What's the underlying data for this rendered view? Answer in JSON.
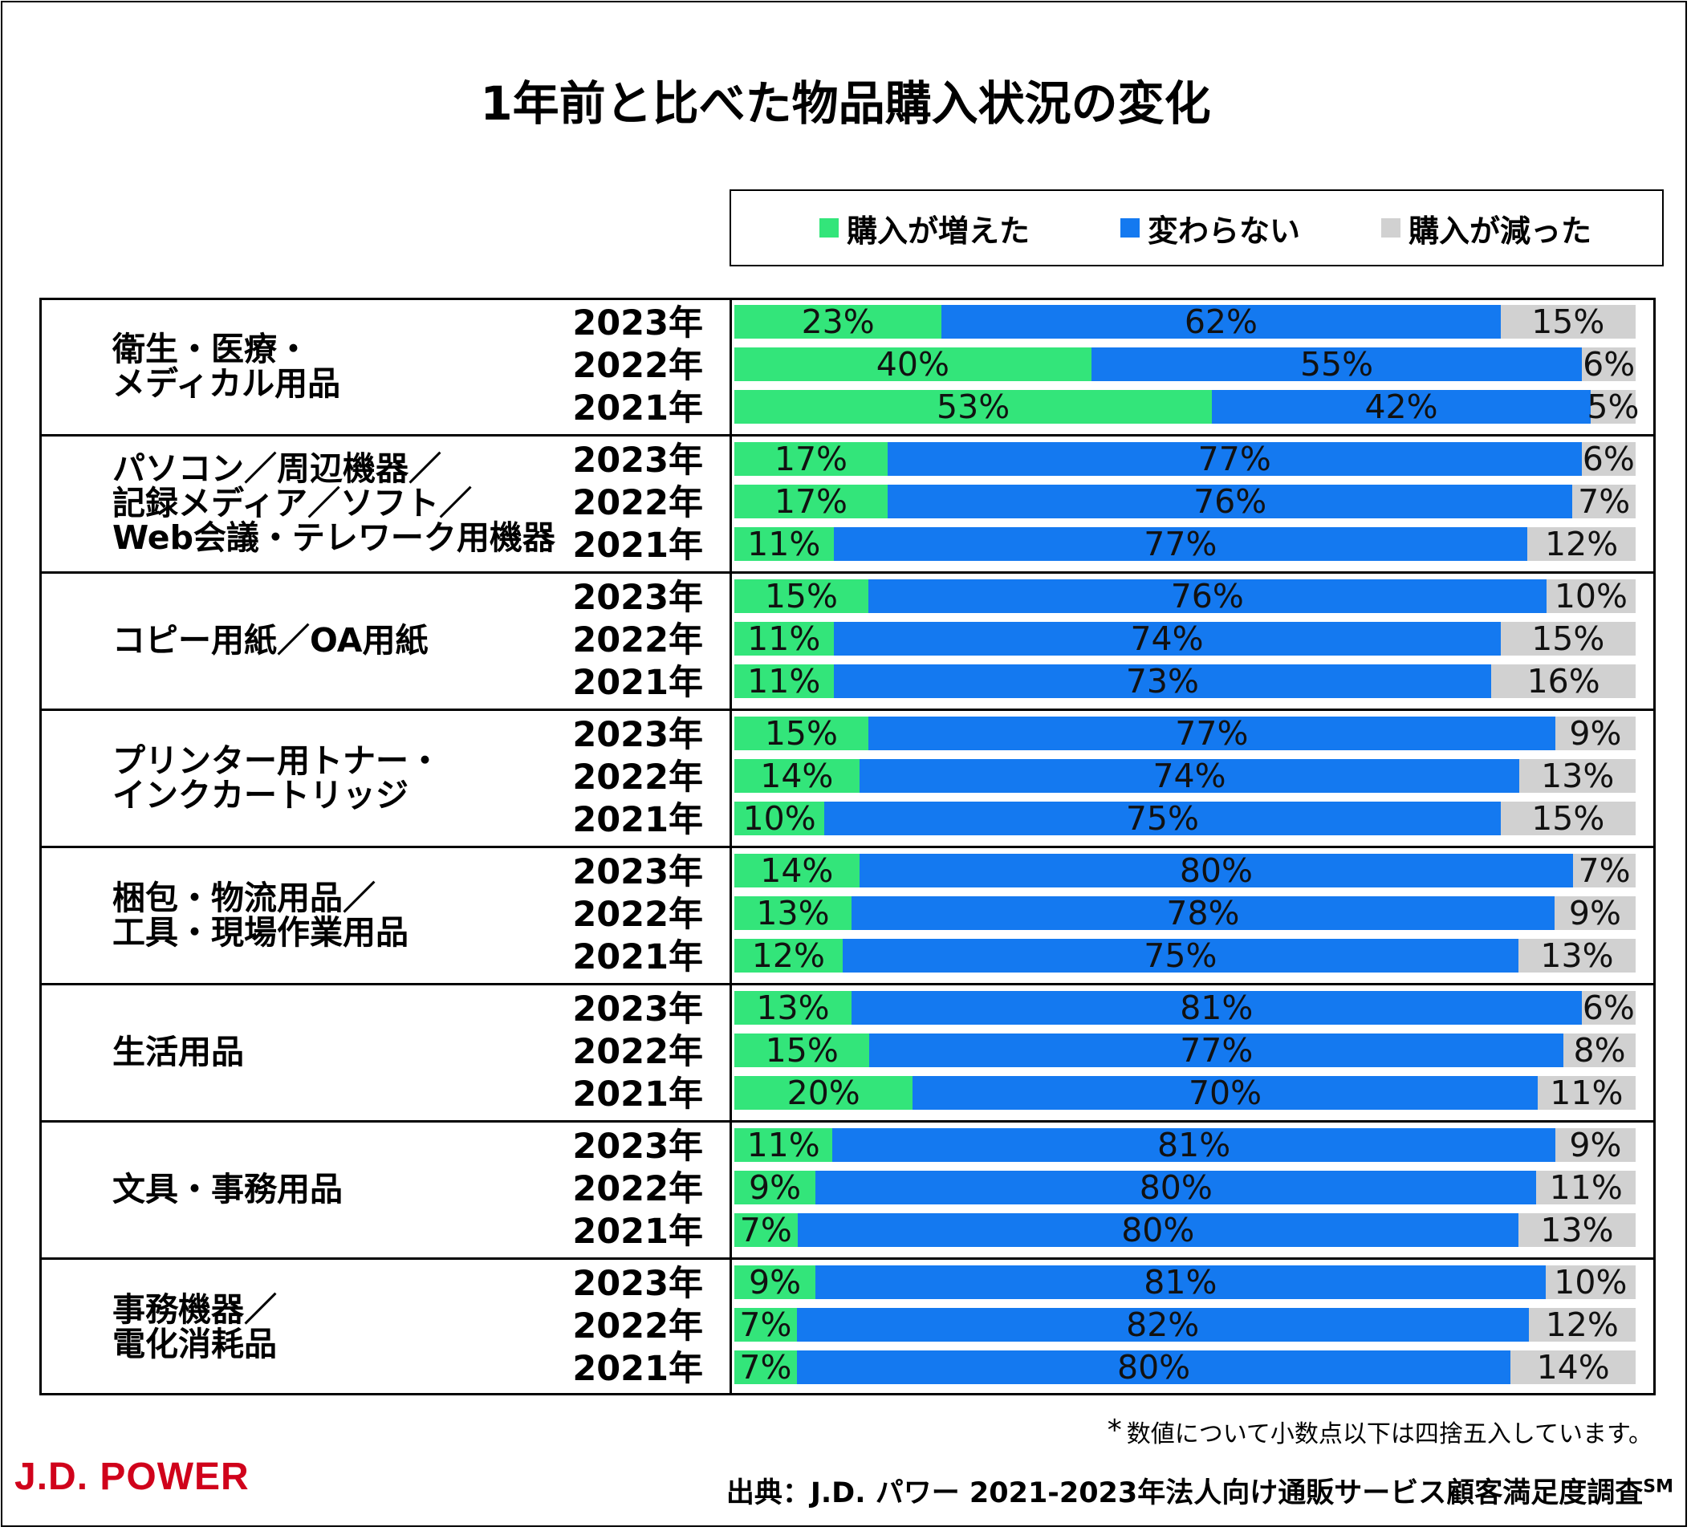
{
  "title": "1年前と比べた物品購入状況の変化",
  "colors": {
    "increased": "#33e57a",
    "unchanged": "#1479f0",
    "decreased": "#d1d1d1"
  },
  "legend": {
    "increased": "購入が増えた",
    "unchanged": "変わらない",
    "decreased": "購入が減った"
  },
  "chart_data": {
    "type": "bar",
    "orientation": "horizontal",
    "stacked": true,
    "unit": "%",
    "title": "1年前と比べた物品購入状況の変化",
    "series_names": [
      "購入が増えた",
      "変わらない",
      "購入が減った"
    ],
    "groups": [
      {
        "label": "衛生・医療・\nメディカル用品",
        "rows": [
          {
            "year": "2023年",
            "values": [
              23,
              62,
              15
            ]
          },
          {
            "year": "2022年",
            "values": [
              40,
              55,
              6
            ]
          },
          {
            "year": "2021年",
            "values": [
              53,
              42,
              5
            ]
          }
        ]
      },
      {
        "label": "パソコン／周辺機器／\n記録メディア／ソフト／\nWeb会議・テレワーク用機器",
        "rows": [
          {
            "year": "2023年",
            "values": [
              17,
              77,
              6
            ]
          },
          {
            "year": "2022年",
            "values": [
              17,
              76,
              7
            ]
          },
          {
            "year": "2021年",
            "values": [
              11,
              77,
              12
            ]
          }
        ]
      },
      {
        "label": "コピー用紙／OA用紙",
        "rows": [
          {
            "year": "2023年",
            "values": [
              15,
              76,
              10
            ]
          },
          {
            "year": "2022年",
            "values": [
              11,
              74,
              15
            ]
          },
          {
            "year": "2021年",
            "values": [
              11,
              73,
              16
            ]
          }
        ]
      },
      {
        "label": "プリンター用トナー・\nインクカートリッジ",
        "rows": [
          {
            "year": "2023年",
            "values": [
              15,
              77,
              9
            ]
          },
          {
            "year": "2022年",
            "values": [
              14,
              74,
              13
            ]
          },
          {
            "year": "2021年",
            "values": [
              10,
              75,
              15
            ]
          }
        ]
      },
      {
        "label": "梱包・物流用品／\n工具・現場作業用品",
        "rows": [
          {
            "year": "2023年",
            "values": [
              14,
              80,
              7
            ]
          },
          {
            "year": "2022年",
            "values": [
              13,
              78,
              9
            ]
          },
          {
            "year": "2021年",
            "values": [
              12,
              75,
              13
            ]
          }
        ]
      },
      {
        "label": "生活用品",
        "rows": [
          {
            "year": "2023年",
            "values": [
              13,
              81,
              6
            ]
          },
          {
            "year": "2022年",
            "values": [
              15,
              77,
              8
            ]
          },
          {
            "year": "2021年",
            "values": [
              20,
              70,
              11
            ]
          }
        ]
      },
      {
        "label": "文具・事務用品",
        "rows": [
          {
            "year": "2023年",
            "values": [
              11,
              81,
              9
            ]
          },
          {
            "year": "2022年",
            "values": [
              9,
              80,
              11
            ]
          },
          {
            "year": "2021年",
            "values": [
              7,
              80,
              13
            ]
          }
        ]
      },
      {
        "label": "事務機器／\n電化消耗品",
        "rows": [
          {
            "year": "2023年",
            "values": [
              9,
              81,
              10
            ]
          },
          {
            "year": "2022年",
            "values": [
              7,
              82,
              12
            ]
          },
          {
            "year": "2021年",
            "values": [
              7,
              80,
              14
            ]
          }
        ]
      }
    ]
  },
  "note": {
    "mark": "*",
    "text": "数値について小数点以下は四捨五入しています。"
  },
  "logo": "J.D. POWER",
  "source": {
    "text": "出典：J.D. パワー 2021-2023年法人向け通販サービス顧客満足度調査",
    "mark": "SM"
  }
}
